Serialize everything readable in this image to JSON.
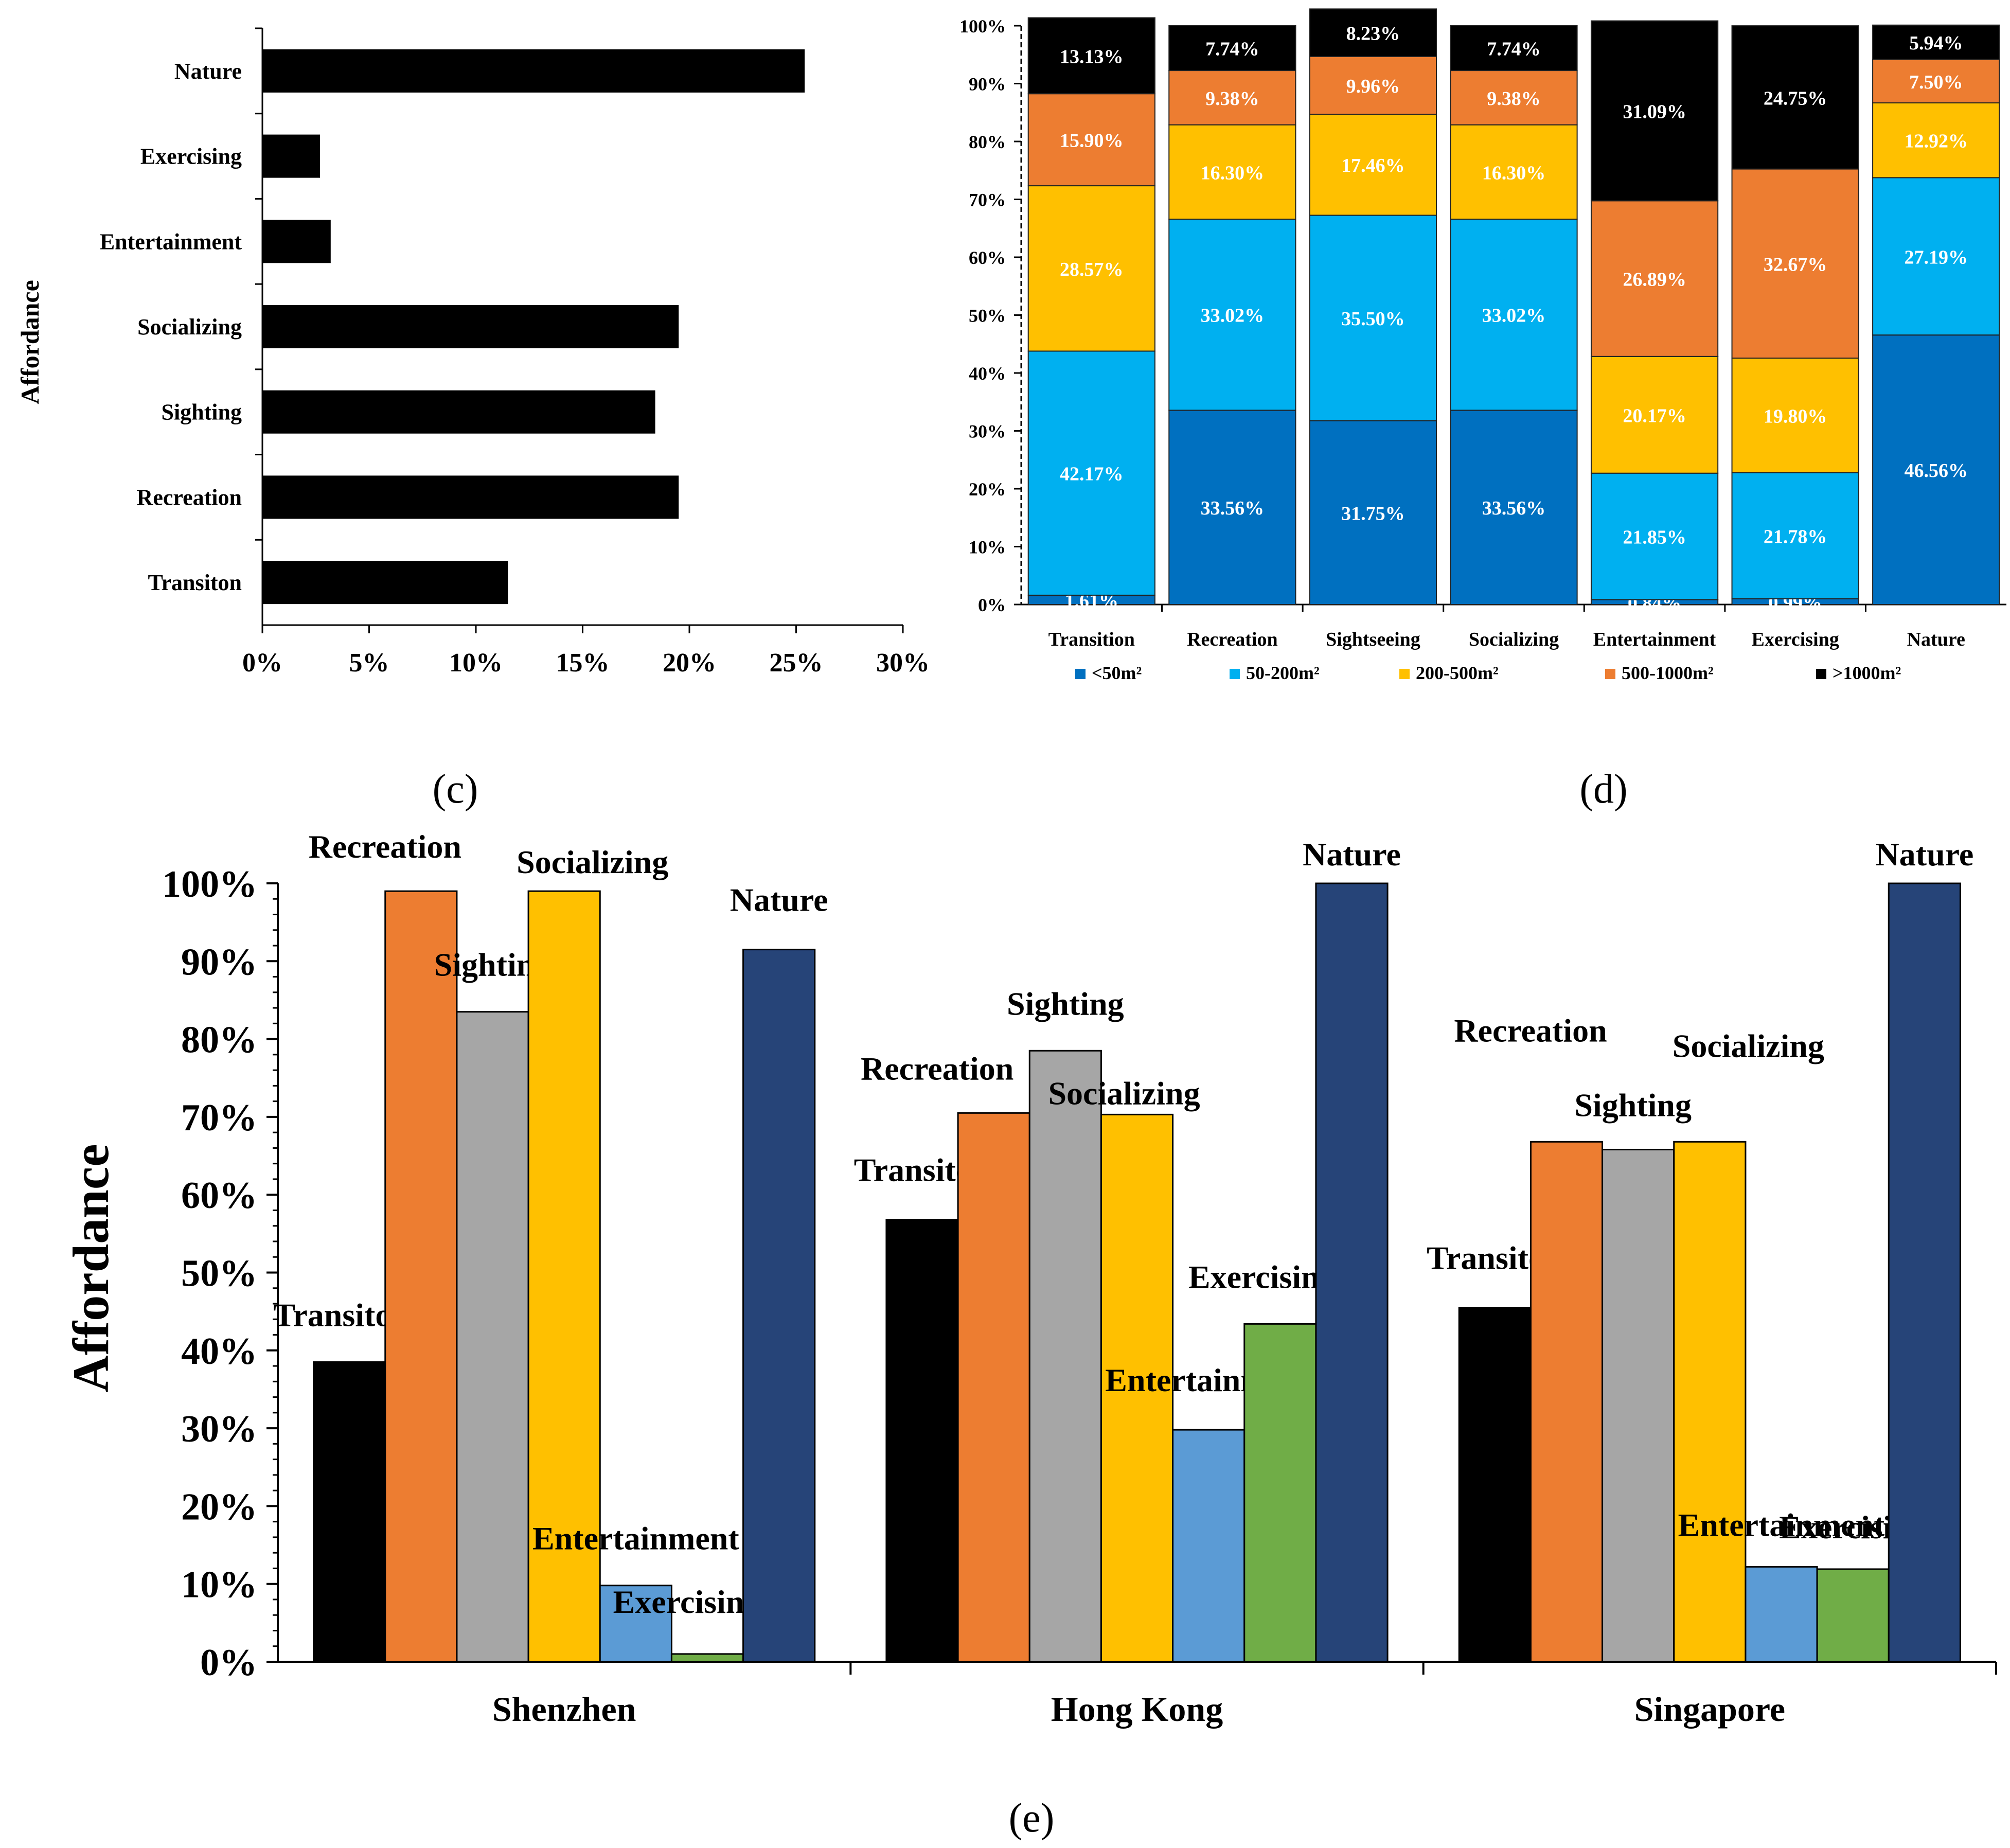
{
  "chart_data": [
    {
      "id": "c",
      "type": "bar",
      "orientation": "horizontal",
      "panel_label": "(c)",
      "ylabel": "Affordance",
      "categories": [
        "Nature",
        "Exercising",
        "Entertainment",
        "Socializing",
        "Sighting",
        "Recreation",
        "Transiton"
      ],
      "values": [
        25.4,
        2.7,
        3.2,
        19.5,
        18.4,
        19.5,
        11.5
      ],
      "xticks": [
        "0%",
        "5%",
        "10%",
        "15%",
        "20%",
        "25%",
        "30%"
      ],
      "xlim": [
        0,
        30
      ],
      "colors": {
        "bar": "#000000"
      }
    },
    {
      "id": "d",
      "type": "bar",
      "stacked": true,
      "panel_label": "(d)",
      "categories": [
        "Transition",
        "Recreation",
        "Sightseeing",
        "Socializing",
        "Entertainment",
        "Exercising",
        "Nature"
      ],
      "yticks": [
        "0%",
        "10%",
        "20%",
        "30%",
        "40%",
        "50%",
        "60%",
        "70%",
        "80%",
        "90%",
        "100%"
      ],
      "ylim": [
        0,
        100
      ],
      "series": [
        {
          "name": "<50m²",
          "color": "#0070c0",
          "values": [
            1.61,
            33.56,
            31.75,
            33.56,
            0.84,
            0.99,
            46.56
          ],
          "labels": [
            "1.61%",
            "33.56%",
            "31.75%",
            "33.56%",
            "0.84%",
            "0.99%",
            "46.56%"
          ]
        },
        {
          "name": "50-200m²",
          "color": "#00b0f0",
          "values": [
            42.17,
            33.02,
            35.5,
            33.02,
            21.85,
            21.78,
            27.19
          ],
          "labels": [
            "42.17%",
            "33.02%",
            "35.50%",
            "33.02%",
            "21.85%",
            "21.78%",
            "27.19%"
          ]
        },
        {
          "name": "200-500m²",
          "color": "#ffc000",
          "values": [
            28.57,
            16.3,
            17.46,
            16.3,
            20.17,
            19.8,
            12.92
          ],
          "labels": [
            "28.57%",
            "16.30%",
            "17.46%",
            "16.30%",
            "20.17%",
            "19.80%",
            "12.92%"
          ]
        },
        {
          "name": "500-1000m²",
          "color": "#ed7d31",
          "values": [
            15.9,
            9.38,
            9.96,
            9.38,
            26.89,
            32.67,
            7.5
          ],
          "labels": [
            "15.90%",
            "9.38%",
            "9.96%",
            "9.38%",
            "26.89%",
            "32.67%",
            "7.50%"
          ]
        },
        {
          "name": ">1000m²",
          "color": "#000000",
          "values": [
            13.13,
            7.74,
            8.23,
            7.74,
            31.09,
            24.75,
            5.94
          ],
          "labels": [
            "13.13%",
            "7.74%",
            "8.23%",
            "7.74%",
            "31.09%",
            "24.75%",
            "5.94%"
          ]
        }
      ]
    },
    {
      "id": "e",
      "type": "bar",
      "panel_label": "(e)",
      "ylabel": "Affordance",
      "categories": [
        "Shenzhen",
        "Hong Kong",
        "Singapore"
      ],
      "yticks": [
        "0%",
        "10%",
        "20%",
        "30%",
        "40%",
        "50%",
        "60%",
        "70%",
        "80%",
        "90%",
        "100%"
      ],
      "ylim": [
        0,
        100
      ],
      "series": [
        {
          "name": "Transiton",
          "color": "#000000",
          "values": [
            38.5,
            56.8,
            45.5
          ]
        },
        {
          "name": "Recreation",
          "color": "#ed7d31",
          "values": [
            99.0,
            70.5,
            66.8
          ]
        },
        {
          "name": "Sighting",
          "color": "#a6a6a6",
          "values": [
            83.5,
            78.5,
            65.8
          ]
        },
        {
          "name": "Socializing",
          "color": "#ffc000",
          "values": [
            99.0,
            70.3,
            66.8
          ]
        },
        {
          "name": "Entertainment",
          "color": "#5b9bd5",
          "values": [
            9.8,
            29.8,
            12.2
          ]
        },
        {
          "name": "Exercising",
          "color": "#70ad47",
          "values": [
            1.0,
            43.4,
            11.9
          ]
        },
        {
          "name": "Nature",
          "color": "#264478",
          "values": [
            91.5,
            100,
            100
          ]
        }
      ]
    }
  ]
}
